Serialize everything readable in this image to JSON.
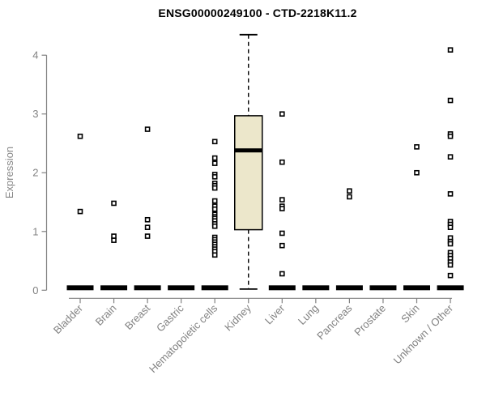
{
  "window": {
    "background": "#ffffff"
  },
  "chart_data": {
    "type": "boxplot",
    "title": "ENSG00000249100 - CTD-2218K11.2",
    "ylabel": "Expression",
    "xlabel": "",
    "ylim": [
      0,
      4.35
    ],
    "yticks": [
      0,
      1,
      2,
      3,
      4
    ],
    "grid": false,
    "legend": false,
    "categories": [
      "Bladder",
      "Brain",
      "Breast",
      "Gastric",
      "Hematopoietic cells",
      "Kidney",
      "Liver",
      "Lung",
      "Pancreas",
      "Prostate",
      "Skin",
      "Unknown / Other"
    ],
    "groups": [
      {
        "name": "Bladder",
        "zero_bar": true,
        "points": [
          2.62,
          1.34
        ]
      },
      {
        "name": "Brain",
        "zero_bar": true,
        "points": [
          1.48,
          0.92,
          0.85
        ]
      },
      {
        "name": "Breast",
        "zero_bar": true,
        "points": [
          2.74,
          1.2,
          1.07,
          0.92
        ]
      },
      {
        "name": "Gastric",
        "zero_bar": true,
        "points": []
      },
      {
        "name": "Hematopoietic cells",
        "zero_bar": true,
        "points": [
          2.53,
          2.25,
          2.16,
          1.97,
          1.93,
          1.82,
          1.78,
          1.74,
          1.52,
          1.43,
          1.38,
          1.29,
          1.25,
          1.22,
          1.18,
          1.13,
          1.09,
          0.9,
          0.86,
          0.82,
          0.78,
          0.74,
          0.7,
          0.66,
          0.6
        ]
      },
      {
        "name": "Kidney",
        "zero_bar": false,
        "box": {
          "whisker_low": 0.02,
          "q1": 1.03,
          "median": 2.38,
          "q3": 2.97,
          "whisker_high": 4.35
        },
        "points": []
      },
      {
        "name": "Liver",
        "zero_bar": true,
        "points": [
          3.0,
          2.18,
          1.54,
          1.43,
          1.39,
          0.97,
          0.76,
          0.28
        ]
      },
      {
        "name": "Lung",
        "zero_bar": true,
        "points": []
      },
      {
        "name": "Pancreas",
        "zero_bar": true,
        "points": [
          1.69,
          1.59
        ]
      },
      {
        "name": "Prostate",
        "zero_bar": true,
        "points": []
      },
      {
        "name": "Skin",
        "zero_bar": true,
        "points": [
          2.44,
          2.0
        ]
      },
      {
        "name": "Unknown / Other",
        "zero_bar": true,
        "points": [
          4.09,
          3.23,
          2.66,
          2.62,
          2.27,
          1.64,
          1.17,
          1.12,
          1.07,
          0.89,
          0.83,
          0.79,
          0.64,
          0.59,
          0.54,
          0.48,
          0.43,
          0.25
        ]
      }
    ],
    "style": {
      "box_fill": "#ece7cb",
      "box_border": "#000000",
      "median_color": "#000000",
      "point_color": "#000000",
      "point_fill": "#ffffff",
      "zero_bar_color": "#000000",
      "axis_color": "#828282",
      "tick_label_color": "#828282",
      "title_color": "#000000"
    }
  }
}
